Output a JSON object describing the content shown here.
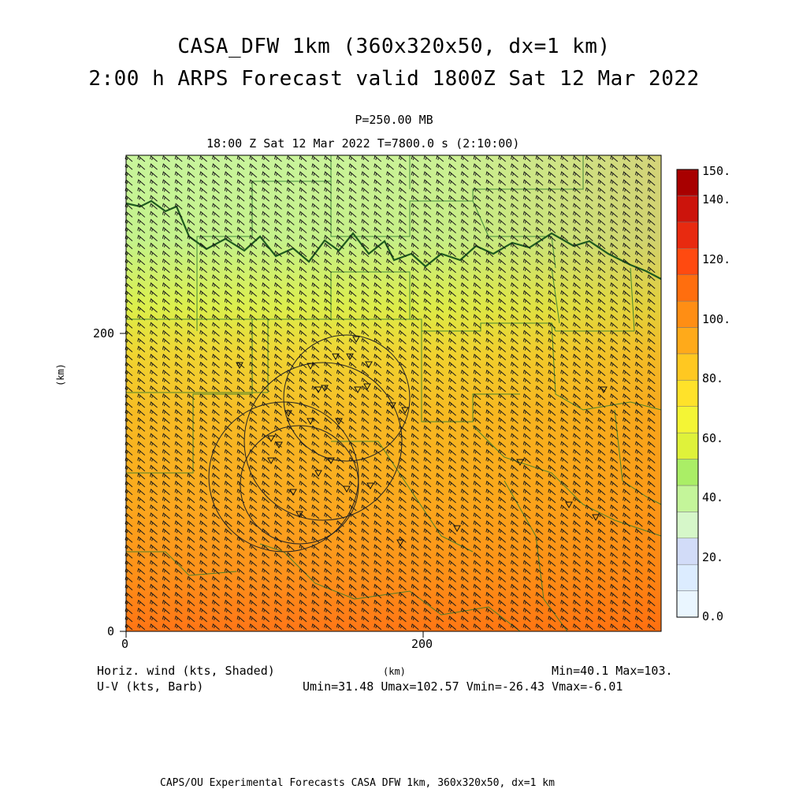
{
  "header": {
    "title_line1": "CASA_DFW 1km (360x320x50, dx=1 km)",
    "title_line2": "2:00 h ARPS Forecast valid 1800Z Sat 12 Mar 2022",
    "level": "P=250.00 MB",
    "time_info": "18:00 Z Sat 12 Mar 2022    T=7800.0 s (2:10:00)"
  },
  "axes": {
    "x_ticks": [
      "0",
      "200"
    ],
    "y_ticks": [
      "0",
      "200"
    ],
    "x_label": "(km)",
    "y_label": "(km)"
  },
  "colorbar": {
    "labels": [
      "0.0",
      "20.",
      "40.",
      "60.",
      "80.",
      "100.",
      "120.",
      "140.",
      "150."
    ],
    "colors": [
      "#eaf6ff",
      "#dcecff",
      "#d2dcf8",
      "#d6f7c9",
      "#c4f59a",
      "#aaee66",
      "#dff23a",
      "#f4f535",
      "#ffe22a",
      "#ffc821",
      "#ffaa1a",
      "#ff8e14",
      "#ff6e0e",
      "#ff4a10",
      "#e82a10",
      "#cc140c",
      "#a80000"
    ]
  },
  "footer": {
    "field1_name": "Horiz. wind (kts, Shaded)",
    "field2_name": "U-V (kts, Barb)",
    "xunit": "(km)",
    "minmax": "Min=40.1 Max=103.",
    "uv_stats": "Umin=31.48 Umax=102.57 Vmin=-26.43 Vmax=-6.01",
    "credit": "CAPS/OU Experimental Forecasts  CASA DFW 1km, 360x320x50, dx=1 km"
  },
  "chart_data": {
    "type": "heatmap",
    "title": "CASA_DFW 1km (360x320x50, dx=1 km)",
    "subtitle": "2:00 h ARPS Forecast valid 1800Z Sat 12 Mar 2022",
    "field": "Horiz. wind (kts, Shaded)",
    "overlay": "U-V (kts, Barb)",
    "xlabel": "(km)",
    "ylabel": "(km)",
    "xlim": [
      0,
      360
    ],
    "ylim": [
      0,
      320
    ],
    "color_scale": [
      0,
      150
    ],
    "color_levels": [
      0,
      10,
      20,
      30,
      40,
      50,
      60,
      65,
      70,
      80,
      90,
      100,
      110,
      120,
      130,
      140,
      150
    ],
    "field_min": 40.1,
    "field_max": 103,
    "Umin": 31.48,
    "Umax": 102.57,
    "Vmin": -26.43,
    "Vmax": -6.01,
    "speed_estimates_kts": {
      "note": "",
      "top_left": 45,
      "top_right": 65,
      "center": 80,
      "bottom_left": 90,
      "bottom_right": 103
    }
  }
}
